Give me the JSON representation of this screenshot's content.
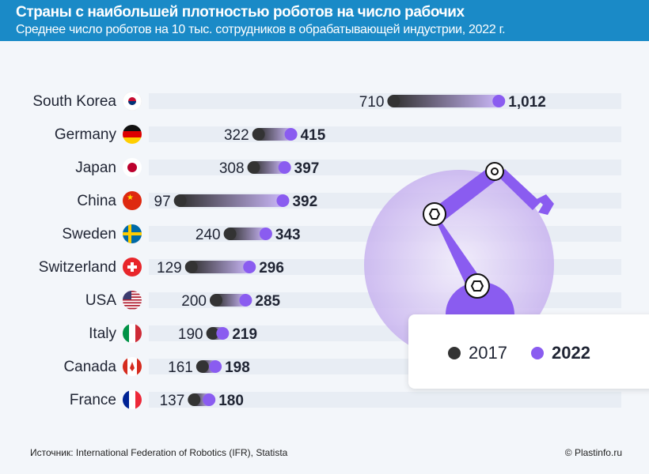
{
  "header": {
    "title": "Страны с наибольшей плотностью роботов на число рабочих",
    "subtitle": "Среднее число роботов на 10 тыс. сотрудников в обрабатывающей индустрии, 2022 г."
  },
  "chart_data": {
    "type": "dumbbell",
    "title": "Страны с наибольшей плотностью роботов на число рабочих",
    "subtitle": "Среднее число роботов на 10 тыс. сотрудников в обрабатывающей индустрии, 2022 г.",
    "categories": [
      "South Korea",
      "Germany",
      "Japan",
      "China",
      "Sweden",
      "Switzerland",
      "USA",
      "Italy",
      "Canada",
      "France"
    ],
    "series": [
      {
        "name": "2017",
        "values": [
          710,
          322,
          308,
          97,
          240,
          129,
          200,
          190,
          161,
          137
        ],
        "color": "#333333"
      },
      {
        "name": "2022",
        "values": [
          1012,
          415,
          397,
          392,
          343,
          296,
          285,
          219,
          198,
          180
        ],
        "color": "#8a5cf0"
      }
    ],
    "value_labels_2022": [
      "1,012",
      "415",
      "397",
      "392",
      "343",
      "296",
      "285",
      "219",
      "198",
      "180"
    ],
    "xlim": [
      0,
      1350
    ]
  },
  "legend": {
    "items": [
      "2017",
      "2022"
    ]
  },
  "footer": {
    "source": "Источник: International Federation of Robotics (IFR),  Statista",
    "copyright": "© Plastinfo.ru"
  }
}
